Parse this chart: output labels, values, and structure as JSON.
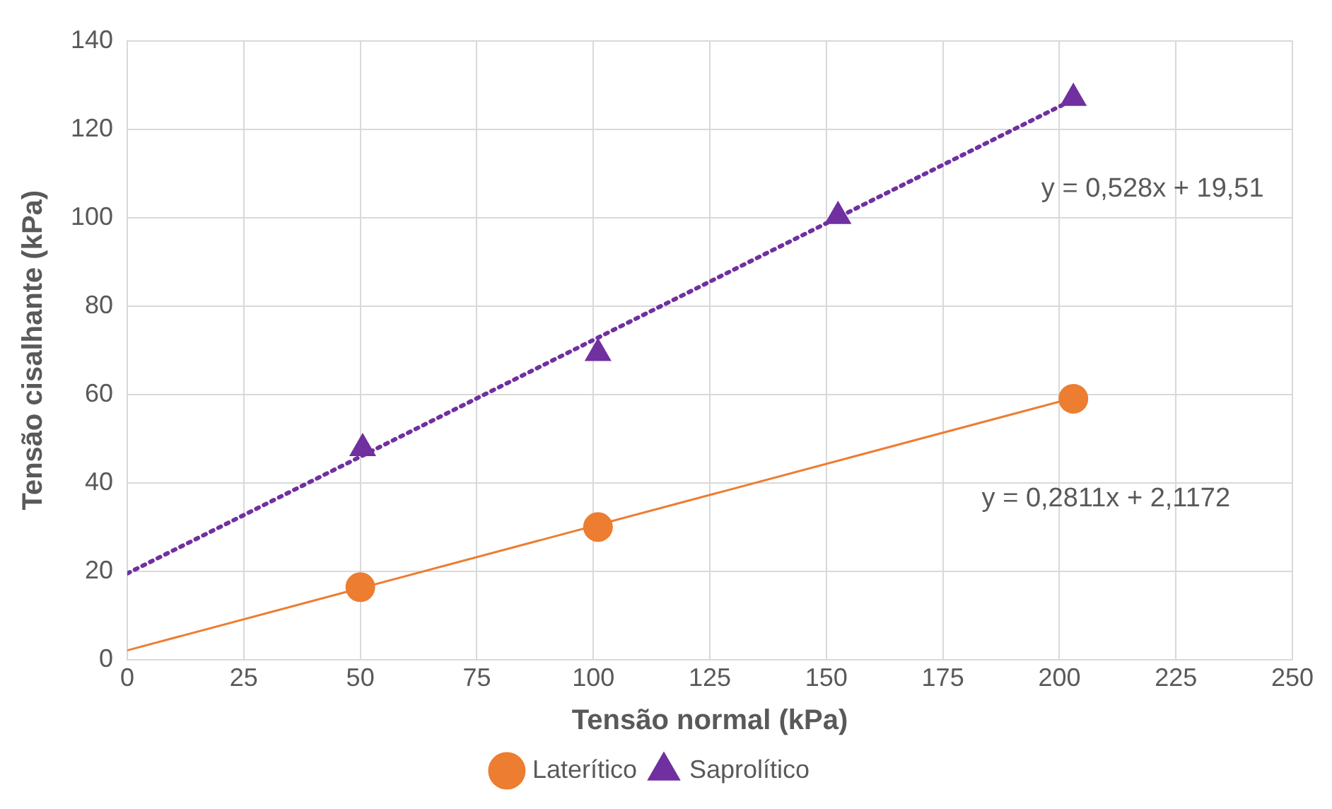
{
  "chart_data": {
    "type": "scatter",
    "xlabel": "Tensão normal (kPa)",
    "ylabel": "Tensão cisalhante (kPa)",
    "xlim": [
      0,
      250
    ],
    "xticks": [
      0,
      25,
      50,
      75,
      100,
      125,
      150,
      175,
      200,
      225,
      250
    ],
    "ylim": [
      0,
      140
    ],
    "yticks": [
      0,
      20,
      40,
      60,
      80,
      100,
      120,
      140
    ],
    "grid": true,
    "legend": "bottom",
    "series": [
      {
        "name": "Laterítico",
        "marker": "circle",
        "color": "#ed7d31",
        "x": [
          50,
          101,
          203
        ],
        "values": [
          16.4,
          30.0,
          59.0
        ]
      },
      {
        "name": "Saprolítico",
        "marker": "triangle",
        "color": "#7030a0",
        "x": [
          50.5,
          101,
          152.5,
          203
        ],
        "values": [
          47.8,
          69.3,
          100.3,
          127
        ]
      },
      {
        "type": "line",
        "marker": "none",
        "line_style": "solid",
        "color": "#ed7d31",
        "x": [
          0,
          203
        ],
        "values": [
          2.1,
          59.2
        ]
      },
      {
        "type": "line",
        "marker": "none",
        "line_style": "dotted",
        "color": "#7030a0",
        "x": [
          0,
          203
        ],
        "values": [
          19.5,
          126.7
        ]
      }
    ],
    "annotations": [
      "y = 0,528x + 19,51",
      "y = 0,2811x + 2,1172"
    ]
  }
}
